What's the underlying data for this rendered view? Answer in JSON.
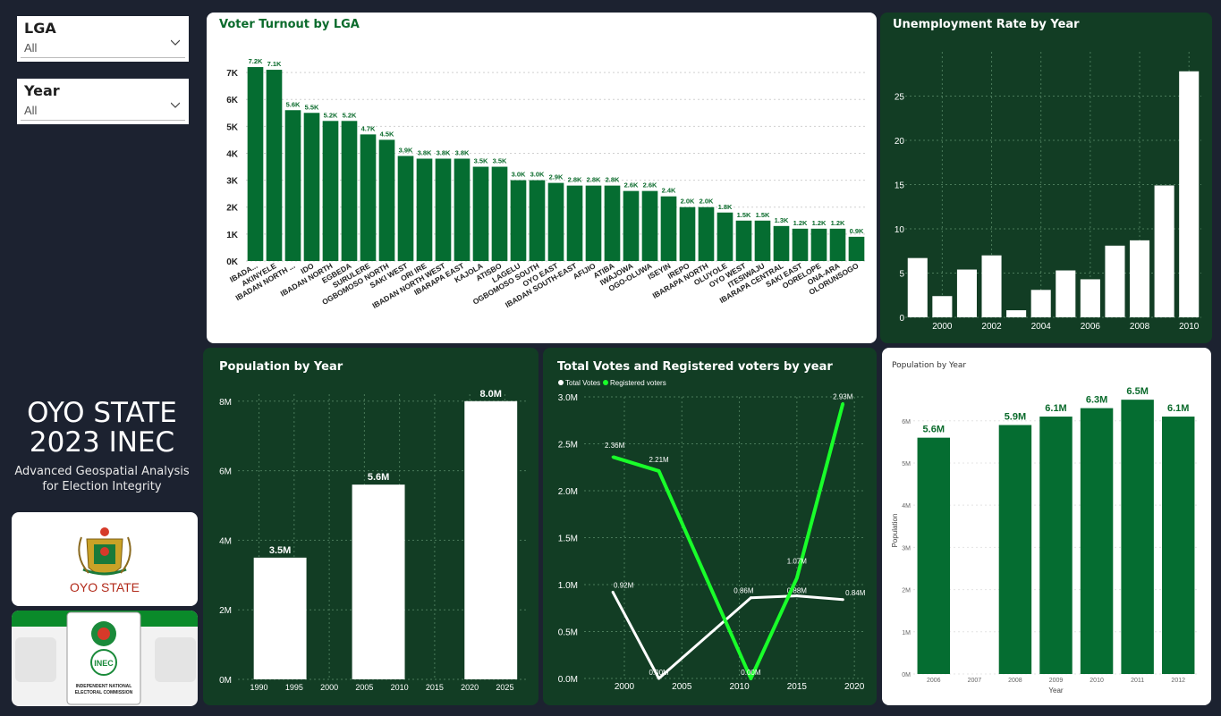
{
  "filters": {
    "lga": {
      "label": "LGA",
      "value": "All"
    },
    "year": {
      "label": "Year",
      "value": "All"
    }
  },
  "brand": {
    "title_line1": "OYO STATE",
    "title_line2": "2023 INEC",
    "subtitle_line1": "Advanced Geospatial Analysis",
    "subtitle_line2": "for Election Integrity",
    "logo1_text": "OYO STATE",
    "logo2_text_1": "INDEPENDENT NATIONAL",
    "logo2_text_2": "ELECTORAL COMMISSION",
    "logo2_badge": "INEC"
  },
  "colors": {
    "green_dark": "#123d24",
    "green_bar": "#056d31",
    "bright_green": "#19ff2a",
    "background": "#1c2230"
  },
  "chart_data": [
    {
      "id": "voter_turnout",
      "type": "bar",
      "title": "Voter Turnout by LGA",
      "categories": [
        "IBADA...",
        "AKINYELE",
        "IBADAN NORTH ...",
        "IDO",
        "IBADAN NORTH",
        "EGBEDA",
        "SURULERE",
        "OGBOMOSO NORTH",
        "SAKI WEST",
        "ORI IRE",
        "IBADAN NORTH WEST",
        "IBARAPA EAST",
        "KAJOLA",
        "ATISBO",
        "LAGELU",
        "OGBOMOSO SOUTH",
        "OYO EAST",
        "IBADAN SOUTH-EAST",
        "AFIJIO",
        "ATIBA",
        "IWAJOWA",
        "OGO-OLUWA",
        "ISEYIN",
        "IREPO",
        "IBARAPA NORTH",
        "OLUYOLE",
        "OYO WEST",
        "ITESIWAJU",
        "IBARAPA CENTRAL",
        "SAKI EAST",
        "OORELOPE",
        "ONA-ARA",
        "OLORUNSOGO"
      ],
      "values": [
        7200,
        7100,
        5600,
        5500,
        5200,
        5200,
        4700,
        4500,
        3900,
        3800,
        3800,
        3800,
        3500,
        3500,
        3000,
        3000,
        2900,
        2800,
        2800,
        2800,
        2600,
        2600,
        2400,
        2000,
        2000,
        1800,
        1500,
        1500,
        1300,
        1200,
        1200,
        1200,
        900
      ],
      "labels": [
        "7.2K",
        "7.1K",
        "5.6K",
        "5.5K",
        "5.2K",
        "5.2K",
        "4.7K",
        "4.5K",
        "3.9K",
        "3.8K",
        "3.8K",
        "3.8K",
        "3.5K",
        "3.5K",
        "3.0K",
        "3.0K",
        "2.9K",
        "2.8K",
        "2.8K",
        "2.8K",
        "2.6K",
        "2.6K",
        "2.4K",
        "2.0K",
        "2.0K",
        "1.8K",
        "1.5K",
        "1.5K",
        "1.3K",
        "1.2K",
        "1.2K",
        "1.2K",
        "0.9K"
      ],
      "yticks": [
        "0K",
        "1K",
        "2K",
        "3K",
        "4K",
        "5K",
        "6K",
        "7K"
      ],
      "ylim": [
        0,
        7500
      ]
    },
    {
      "id": "unemployment",
      "type": "bar",
      "title": "Unemployment Rate by Year",
      "x": [
        1999,
        2000,
        2001,
        2002,
        2003,
        2004,
        2005,
        2006,
        2007,
        2008,
        2009,
        2010
      ],
      "values": [
        6.7,
        2.4,
        5.4,
        7.0,
        0.8,
        3.1,
        5.3,
        4.3,
        8.1,
        8.7,
        14.9,
        27.8
      ],
      "xticks": [
        "2000",
        "2002",
        "2004",
        "2006",
        "2008",
        "2010"
      ],
      "yticks": [
        "0",
        "5",
        "10",
        "15",
        "20",
        "25"
      ],
      "ylim": [
        0,
        30
      ]
    },
    {
      "id": "population_main",
      "type": "bar",
      "title": "Population by Year",
      "x": [
        1993,
        2007,
        2023
      ],
      "values": [
        3.5,
        5.6,
        8.0
      ],
      "labels": [
        "3.5M",
        "5.6M",
        "8.0M"
      ],
      "xticks": [
        "1990",
        "1995",
        "2000",
        "2005",
        "2010",
        "2015",
        "2020",
        "2025"
      ],
      "yticks": [
        "0M",
        "2M",
        "4M",
        "6M",
        "8M"
      ],
      "ylim": [
        0,
        8.2
      ]
    },
    {
      "id": "votes_registered",
      "type": "line",
      "title": "Total Votes and Registered voters by year",
      "legend": [
        "Total Votes",
        "Registered voters"
      ],
      "series": [
        {
          "name": "Total Votes",
          "x": [
            1999,
            2003,
            2011,
            2015,
            2019
          ],
          "values": [
            0.92,
            0.0,
            0.86,
            0.88,
            0.84
          ],
          "labels": [
            "0.92M",
            "0.00M",
            "0.86M",
            "0.88M",
            "0.84M"
          ],
          "color": "#ffffff"
        },
        {
          "name": "Registered voters",
          "x": [
            1999,
            2003,
            2011,
            2015,
            2019
          ],
          "values": [
            2.36,
            2.21,
            0.0,
            1.07,
            2.93
          ],
          "labels": [
            "2.36M",
            "2.21M",
            "0.00M",
            "1.07M",
            "2.93M"
          ],
          "color": "#19ff2a"
        }
      ],
      "xticks": [
        "2000",
        "2005",
        "2010",
        "2015",
        "2020"
      ],
      "yticks": [
        "0.0M",
        "0.5M",
        "1.0M",
        "1.5M",
        "2.0M",
        "2.5M",
        "3.0M"
      ],
      "ylim": [
        0,
        3.0
      ]
    },
    {
      "id": "population_small",
      "type": "bar",
      "title": "Population by Year",
      "xlabel": "Year",
      "ylabel": "Population",
      "categories": [
        "2006",
        "2007",
        "2008",
        "2009",
        "2010",
        "2011",
        "2012"
      ],
      "values": [
        5.6,
        null,
        5.9,
        6.1,
        6.3,
        6.5,
        6.1
      ],
      "labels": [
        "5.6M",
        "",
        "5.9M",
        "6.1M",
        "6.3M",
        "6.5M",
        "6.1M"
      ],
      "yticks": [
        "0M",
        "1M",
        "2M",
        "3M",
        "4M",
        "5M",
        "6M"
      ],
      "ylim": [
        0,
        6.8
      ]
    }
  ]
}
